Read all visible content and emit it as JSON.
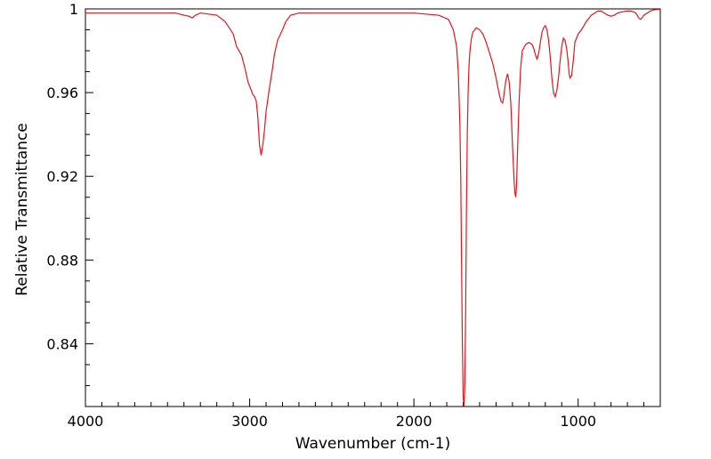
{
  "chart_data": {
    "type": "line",
    "xlabel": "Wavenumber (cm-1)",
    "ylabel": "Relative Transmittance",
    "xlim": [
      4000,
      500
    ],
    "ylim": [
      0.81,
      1.0
    ],
    "x_ticks": [
      4000,
      3000,
      2000,
      1000
    ],
    "x_tick_labels": [
      "4000",
      "3000",
      "2000",
      "1000"
    ],
    "y_ticks": [
      1.0,
      0.96,
      0.92,
      0.88,
      0.84
    ],
    "y_tick_labels": [
      "1",
      "0.96",
      "0.92",
      "0.88",
      "0.84"
    ],
    "grid": false,
    "x_reversed": true,
    "line_color": "#e8141c",
    "series": [
      {
        "x": [
          4000,
          3800,
          3600,
          3450,
          3400,
          3370,
          3350,
          3330,
          3300,
          3200,
          3150,
          3100,
          3080,
          3050,
          3030,
          3010,
          2990,
          2980,
          2970,
          2960,
          2950,
          2940,
          2930,
          2920,
          2910,
          2900,
          2880,
          2860,
          2850,
          2830,
          2800,
          2780,
          2750,
          2700,
          2500,
          2200,
          2000,
          1850,
          1790,
          1760,
          1740,
          1730,
          1720,
          1715,
          1710,
          1705,
          1700,
          1695,
          1690,
          1685,
          1680,
          1675,
          1670,
          1665,
          1660,
          1650,
          1640,
          1620,
          1600,
          1580,
          1560,
          1540,
          1520,
          1500,
          1480,
          1470,
          1460,
          1455,
          1450,
          1440,
          1430,
          1420,
          1410,
          1400,
          1390,
          1385,
          1380,
          1375,
          1370,
          1360,
          1350,
          1340,
          1320,
          1300,
          1280,
          1270,
          1260,
          1250,
          1240,
          1230,
          1220,
          1210,
          1200,
          1190,
          1180,
          1170,
          1160,
          1150,
          1140,
          1130,
          1120,
          1110,
          1100,
          1090,
          1080,
          1070,
          1060,
          1055,
          1050,
          1040,
          1030,
          1020,
          1000,
          980,
          950,
          920,
          900,
          880,
          860,
          840,
          820,
          800,
          780,
          760,
          740,
          700,
          680,
          660,
          650,
          640,
          630,
          620,
          610,
          600,
          580,
          560,
          540,
          520,
          500
        ],
        "y": [
          0.998,
          0.998,
          0.998,
          0.998,
          0.997,
          0.9965,
          0.9957,
          0.997,
          0.998,
          0.997,
          0.994,
          0.988,
          0.982,
          0.978,
          0.972,
          0.965,
          0.961,
          0.959,
          0.958,
          0.956,
          0.948,
          0.935,
          0.93,
          0.935,
          0.942,
          0.951,
          0.962,
          0.972,
          0.978,
          0.985,
          0.99,
          0.994,
          0.997,
          0.998,
          0.998,
          0.998,
          0.998,
          0.997,
          0.995,
          0.99,
          0.982,
          0.97,
          0.945,
          0.92,
          0.88,
          0.84,
          0.815,
          0.809,
          0.82,
          0.855,
          0.905,
          0.94,
          0.96,
          0.972,
          0.979,
          0.986,
          0.989,
          0.991,
          0.99,
          0.988,
          0.984,
          0.979,
          0.974,
          0.967,
          0.959,
          0.956,
          0.955,
          0.957,
          0.96,
          0.966,
          0.969,
          0.965,
          0.955,
          0.935,
          0.918,
          0.912,
          0.91,
          0.916,
          0.93,
          0.955,
          0.972,
          0.98,
          0.983,
          0.984,
          0.983,
          0.981,
          0.978,
          0.976,
          0.979,
          0.984,
          0.989,
          0.991,
          0.992,
          0.99,
          0.985,
          0.977,
          0.967,
          0.96,
          0.958,
          0.961,
          0.967,
          0.975,
          0.982,
          0.986,
          0.985,
          0.981,
          0.974,
          0.969,
          0.967,
          0.968,
          0.975,
          0.984,
          0.988,
          0.99,
          0.994,
          0.997,
          0.998,
          0.999,
          0.999,
          0.998,
          0.997,
          0.9965,
          0.997,
          0.998,
          0.9985,
          0.999,
          0.999,
          0.9985,
          0.998,
          0.997,
          0.9955,
          0.995,
          0.9958,
          0.997,
          0.998,
          0.999,
          0.9995,
          0.9997,
          0.9998
        ]
      }
    ]
  }
}
